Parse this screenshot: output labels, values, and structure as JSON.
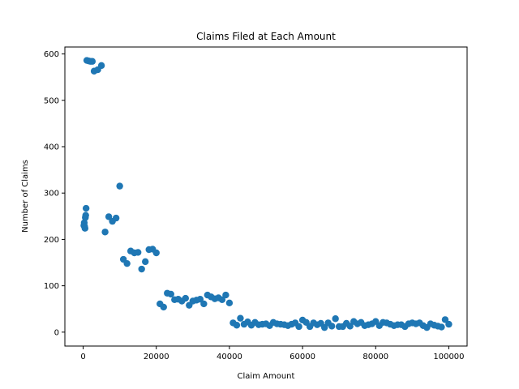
{
  "chart_data": {
    "type": "scatter",
    "title": "Claims Filed at Each Amount",
    "xlabel": "Claim Amount",
    "ylabel": "Number of Claims",
    "xlim": [
      -5000,
      105000
    ],
    "ylim": [
      -30,
      615
    ],
    "xticks": [
      0,
      20000,
      40000,
      60000,
      80000,
      100000
    ],
    "yticks": [
      0,
      100,
      200,
      300,
      400,
      500,
      600
    ],
    "grid": false,
    "marker_color": "#1f77b4",
    "series": [
      {
        "points": [
          [
            200,
            230
          ],
          [
            300,
            236
          ],
          [
            400,
            228
          ],
          [
            500,
            224
          ],
          [
            600,
            247
          ],
          [
            700,
            252
          ],
          [
            800,
            267
          ],
          [
            1000,
            586
          ],
          [
            1500,
            585
          ],
          [
            2000,
            584
          ],
          [
            2500,
            584
          ],
          [
            3000,
            563
          ],
          [
            4000,
            566
          ],
          [
            5000,
            575
          ],
          [
            6000,
            216
          ],
          [
            7000,
            249
          ],
          [
            8000,
            239
          ],
          [
            9000,
            246
          ],
          [
            10000,
            315
          ],
          [
            11000,
            157
          ],
          [
            12000,
            148
          ],
          [
            13000,
            175
          ],
          [
            14000,
            171
          ],
          [
            15000,
            172
          ],
          [
            16000,
            136
          ],
          [
            17000,
            152
          ],
          [
            18000,
            178
          ],
          [
            19000,
            179
          ],
          [
            20000,
            171
          ],
          [
            21000,
            61
          ],
          [
            22000,
            54
          ],
          [
            23000,
            84
          ],
          [
            24000,
            82
          ],
          [
            25000,
            70
          ],
          [
            26000,
            71
          ],
          [
            27000,
            67
          ],
          [
            28000,
            73
          ],
          [
            29000,
            58
          ],
          [
            30000,
            67
          ],
          [
            31000,
            69
          ],
          [
            32000,
            71
          ],
          [
            33000,
            61
          ],
          [
            34000,
            80
          ],
          [
            35000,
            76
          ],
          [
            36000,
            72
          ],
          [
            37000,
            74
          ],
          [
            38000,
            70
          ],
          [
            39000,
            80
          ],
          [
            40000,
            63
          ],
          [
            41000,
            20
          ],
          [
            42000,
            15
          ],
          [
            43000,
            30
          ],
          [
            44000,
            17
          ],
          [
            45000,
            22
          ],
          [
            46000,
            15
          ],
          [
            47000,
            21
          ],
          [
            48000,
            16
          ],
          [
            49000,
            17
          ],
          [
            50000,
            18
          ],
          [
            51000,
            14
          ],
          [
            52000,
            21
          ],
          [
            53000,
            18
          ],
          [
            54000,
            17
          ],
          [
            55000,
            16
          ],
          [
            56000,
            14
          ],
          [
            57000,
            17
          ],
          [
            58000,
            20
          ],
          [
            59000,
            12
          ],
          [
            60000,
            26
          ],
          [
            61000,
            21
          ],
          [
            62000,
            12
          ],
          [
            63000,
            20
          ],
          [
            64000,
            16
          ],
          [
            65000,
            19
          ],
          [
            66000,
            10
          ],
          [
            67000,
            20
          ],
          [
            68000,
            13
          ],
          [
            69000,
            29
          ],
          [
            70000,
            12
          ],
          [
            71000,
            12
          ],
          [
            72000,
            19
          ],
          [
            73000,
            13
          ],
          [
            74000,
            23
          ],
          [
            75000,
            18
          ],
          [
            76000,
            21
          ],
          [
            77000,
            14
          ],
          [
            78000,
            16
          ],
          [
            79000,
            18
          ],
          [
            80000,
            23
          ],
          [
            81000,
            14
          ],
          [
            82000,
            21
          ],
          [
            83000,
            20
          ],
          [
            84000,
            17
          ],
          [
            85000,
            14
          ],
          [
            86000,
            16
          ],
          [
            87000,
            16
          ],
          [
            88000,
            12
          ],
          [
            89000,
            18
          ],
          [
            90000,
            20
          ],
          [
            91000,
            18
          ],
          [
            92000,
            20
          ],
          [
            93000,
            14
          ],
          [
            94000,
            10
          ],
          [
            95000,
            18
          ],
          [
            96000,
            15
          ],
          [
            97000,
            13
          ],
          [
            98000,
            11
          ],
          [
            99000,
            27
          ],
          [
            100000,
            17
          ]
        ]
      }
    ]
  }
}
